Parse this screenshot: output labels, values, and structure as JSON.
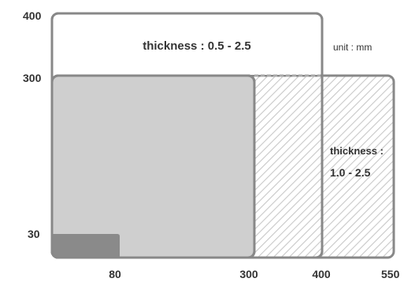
{
  "diagram": {
    "unit_label": "unit : mm",
    "regions": {
      "top_thickness": "thickness : 0.5 - 2.5",
      "right_thickness_line1": "thickness :",
      "right_thickness_line2": "1.0 - 2.5"
    },
    "y_axis_labels": [
      "400",
      "300",
      "30"
    ],
    "x_axis_labels": [
      "80",
      "300",
      "400",
      "550"
    ],
    "colors": {
      "outline": "#888888",
      "gray_fill": "#cfcfcf",
      "dark_fill": "#8a8a8a",
      "hatch": "#c8c8c8",
      "text": "#333333"
    }
  }
}
